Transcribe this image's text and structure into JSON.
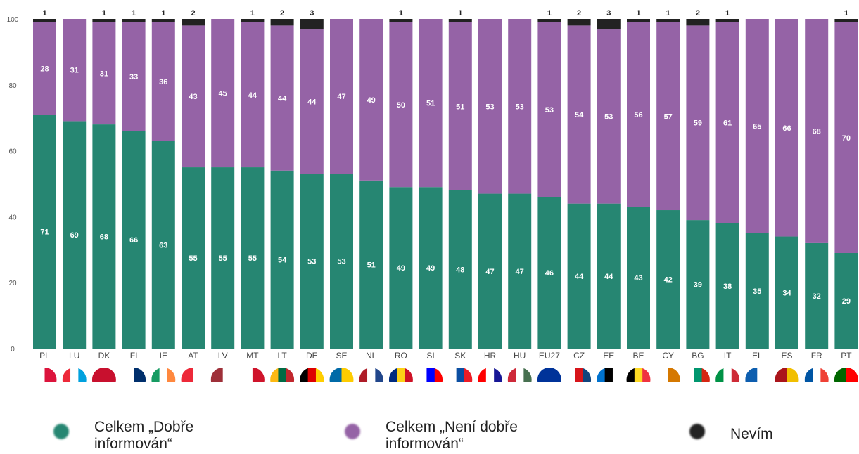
{
  "chart_data": {
    "type": "bar",
    "stacked": true,
    "categories": [
      "PL",
      "LU",
      "DK",
      "FI",
      "IE",
      "AT",
      "LV",
      "MT",
      "LT",
      "DE",
      "SE",
      "NL",
      "RO",
      "SI",
      "SK",
      "HR",
      "HU",
      "EU27",
      "CZ",
      "EE",
      "BE",
      "CY",
      "BG",
      "IT",
      "EL",
      "ES",
      "FR",
      "PT"
    ],
    "series": [
      {
        "name": "Celkem „Dobře informován“",
        "color": "#268672",
        "values": [
          71,
          69,
          68,
          66,
          63,
          55,
          55,
          55,
          54,
          53,
          53,
          51,
          49,
          49,
          48,
          47,
          47,
          46,
          44,
          44,
          43,
          42,
          39,
          38,
          35,
          34,
          32,
          29
        ]
      },
      {
        "name": "Celkem „Není dobře informován“",
        "color": "#9563a6",
        "values": [
          28,
          31,
          31,
          33,
          36,
          43,
          45,
          44,
          44,
          44,
          47,
          49,
          50,
          51,
          51,
          53,
          53,
          53,
          54,
          53,
          56,
          57,
          59,
          61,
          65,
          66,
          68,
          70
        ]
      },
      {
        "name": "Nevím",
        "color": "#222222",
        "values": [
          1,
          0,
          1,
          1,
          1,
          2,
          0,
          1,
          2,
          3,
          0,
          0,
          1,
          0,
          1,
          0,
          0,
          1,
          2,
          3,
          1,
          1,
          2,
          1,
          0,
          0,
          0,
          1
        ]
      }
    ],
    "y_ticks": [
      "0",
      "20",
      "40",
      "60",
      "80",
      "100"
    ],
    "ylim": [
      0,
      100
    ],
    "grid": false,
    "legend_position": "bottom",
    "flags": [
      "PL",
      "LU",
      "DK",
      "FI",
      "IE",
      "AT",
      "LV",
      "MT",
      "LT",
      "DE",
      "SE",
      "NL",
      "RO",
      "SI",
      "SK",
      "HR",
      "HU",
      "EU27",
      "CZ",
      "EE",
      "BE",
      "CY",
      "BG",
      "IT",
      "EL",
      "ES",
      "FR",
      "PT"
    ]
  },
  "legend": {
    "items": [
      {
        "label": "Celkem „Dobře\ninformován“",
        "color": "#268672"
      },
      {
        "label": "Celkem „Není dobře\ninformován“",
        "color": "#9563a6"
      },
      {
        "label": "Nevím",
        "color": "#222222"
      }
    ]
  }
}
